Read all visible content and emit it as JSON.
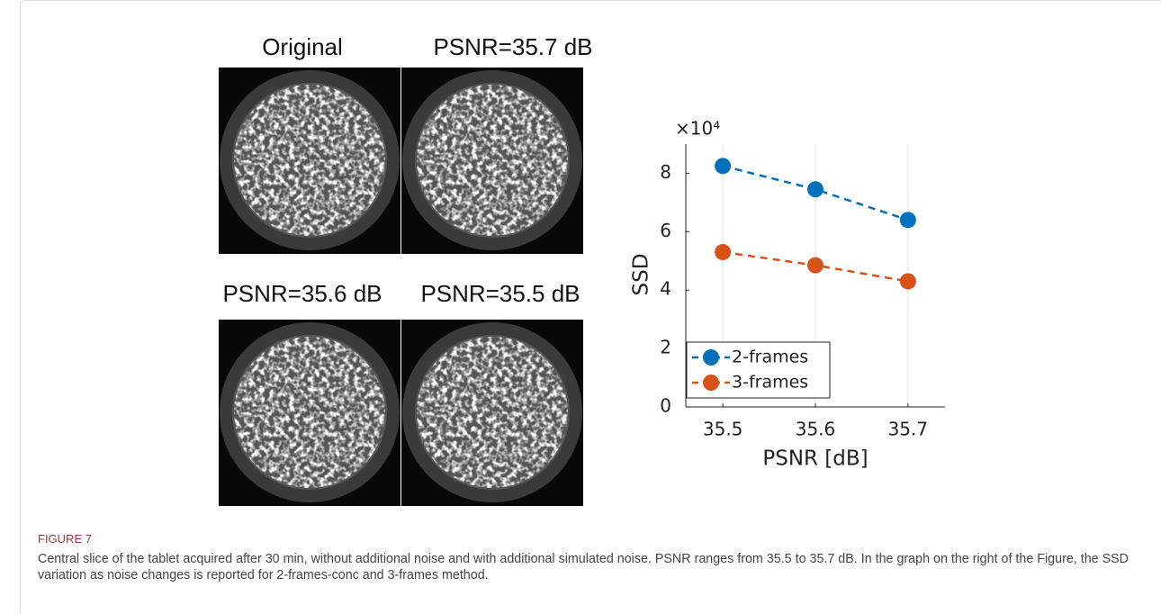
{
  "figure": {
    "panels": [
      {
        "label": "Original"
      },
      {
        "label": "PSNR=35.7 dB"
      },
      {
        "label": "PSNR=35.6 dB"
      },
      {
        "label": "PSNR=35.5 dB"
      }
    ],
    "label": "FIGURE 7",
    "caption": "Central slice of the tablet acquired after 30 min, without additional noise and with additional simulated noise. PSNR ranges from 35.5 to 35.7 dB. In the graph on the right of the Figure, the SSD variation as noise changes is reported for 2-frames-conc and 3-frames method."
  },
  "chart_data": {
    "type": "line",
    "x": [
      35.5,
      35.6,
      35.7
    ],
    "series": [
      {
        "name": "2-frames",
        "color": "#0072bd",
        "values": [
          8.25,
          7.45,
          6.4
        ]
      },
      {
        "name": "3-frames",
        "color": "#d95319",
        "values": [
          5.3,
          4.85,
          4.3
        ]
      }
    ],
    "xlabel": "PSNR [dB]",
    "ylabel": "SSD",
    "y_multiplier": "×10⁴",
    "xlim": [
      35.46,
      35.74
    ],
    "ylim": [
      0,
      9
    ],
    "xticks": [
      35.5,
      35.6,
      35.7
    ],
    "yticks": [
      0,
      2,
      4,
      6,
      8
    ],
    "grid": "x",
    "legend": "lower-left",
    "line_style": "dashed"
  }
}
